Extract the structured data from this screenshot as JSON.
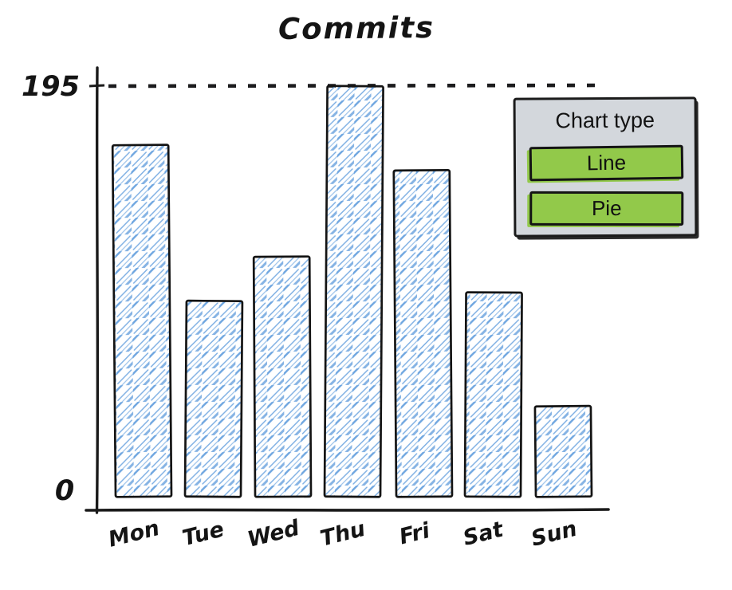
{
  "chart_data": {
    "type": "bar",
    "title": "Commits",
    "categories": [
      "Mon",
      "Tue",
      "Wed",
      "Thu",
      "Fri",
      "Sat",
      "Sun"
    ],
    "values": [
      167,
      93,
      114,
      195,
      155,
      97,
      43
    ],
    "xlabel": "",
    "ylabel": "",
    "ylim": [
      0,
      195
    ],
    "y_tick_labels": [
      "0",
      "195"
    ],
    "reference_line": {
      "value": 195,
      "style": "dashed"
    },
    "grid": false,
    "legend": false,
    "style": {
      "look": "hand-drawn-sketch",
      "bar_hatch_color": "#6fa6e0",
      "bar_outline_color": "#141414",
      "axis_color": "#1a1a1a"
    }
  },
  "chart_type_panel": {
    "title": "Chart type",
    "buttons": [
      {
        "label": "Line"
      },
      {
        "label": "Pie"
      }
    ],
    "panel_color": "#d3d7dc",
    "button_color": "#92c94a"
  }
}
